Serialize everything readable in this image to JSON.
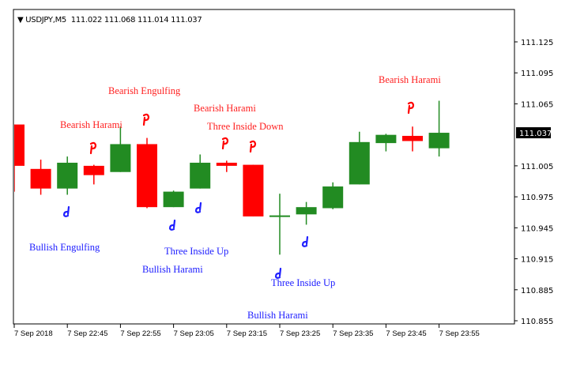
{
  "header": {
    "symbol": "USDJPY,M5",
    "ohlc": "111.022 111.068 111.014 111.037"
  },
  "chart_data": {
    "type": "candlestick",
    "title": "USDJPY,M5",
    "colors": {
      "bull": "#228B22",
      "bear": "#FF0000",
      "bearish_label": "#FF2020",
      "bullish_label": "#2020FF"
    },
    "ylim": [
      110.845,
      111.15
    ],
    "yticks": [
      "111.125",
      "111.095",
      "111.065",
      "111.005",
      "110.975",
      "110.945",
      "110.915",
      "110.885",
      "110.855"
    ],
    "current_price": "111.037",
    "xtick_labels": [
      "7 Sep 2018",
      "7 Sep 22:45",
      "7 Sep 22:55",
      "7 Sep 23:05",
      "7 Sep 23:15",
      "7 Sep 23:25",
      "7 Sep 23:35",
      "7 Sep 23:45",
      "7 Sep 23:55"
    ],
    "candles": [
      {
        "t": "22:35",
        "o": 111.045,
        "h": 111.045,
        "l": 110.98,
        "c": 111.005
      },
      {
        "t": "22:40",
        "o": 111.002,
        "h": 111.011,
        "l": 110.977,
        "c": 110.983
      },
      {
        "t": "22:45",
        "o": 110.983,
        "h": 111.014,
        "l": 110.977,
        "c": 111.008
      },
      {
        "t": "22:50",
        "o": 111.005,
        "h": 111.006,
        "l": 110.987,
        "c": 110.996
      },
      {
        "t": "22:55",
        "o": 110.999,
        "h": 111.043,
        "l": 110.999,
        "c": 111.026
      },
      {
        "t": "23:00",
        "o": 111.026,
        "h": 111.032,
        "l": 110.964,
        "c": 110.965
      },
      {
        "t": "23:05",
        "o": 110.965,
        "h": 110.981,
        "l": 110.965,
        "c": 110.98
      },
      {
        "t": "23:10",
        "o": 110.983,
        "h": 111.016,
        "l": 110.983,
        "c": 111.008
      },
      {
        "t": "23:15",
        "o": 111.008,
        "h": 111.01,
        "l": 110.999,
        "c": 111.005
      },
      {
        "t": "23:20",
        "o": 111.006,
        "h": 111.006,
        "l": 110.956,
        "c": 110.956
      },
      {
        "t": "23:25",
        "o": 110.957,
        "h": 110.978,
        "l": 110.919,
        "c": 110.957
      },
      {
        "t": "23:30",
        "o": 110.958,
        "h": 110.97,
        "l": 110.948,
        "c": 110.965
      },
      {
        "t": "23:35",
        "o": 110.964,
        "h": 110.989,
        "l": 110.963,
        "c": 110.985
      },
      {
        "t": "23:40",
        "o": 110.987,
        "h": 111.038,
        "l": 110.987,
        "c": 111.028
      },
      {
        "t": "23:45",
        "o": 111.027,
        "h": 111.036,
        "l": 111.019,
        "c": 111.035
      },
      {
        "t": "23:50",
        "o": 111.034,
        "h": 111.043,
        "l": 111.019,
        "c": 111.029
      },
      {
        "t": "23:55",
        "o": 111.022,
        "h": 111.068,
        "l": 111.014,
        "c": 111.037
      }
    ],
    "annotations": [
      {
        "text": "Bearish Engulfing",
        "type": "bearish"
      },
      {
        "text": "Bearish Harami",
        "type": "bearish"
      },
      {
        "text": "Bearish Harami",
        "type": "bearish"
      },
      {
        "text": "Three Inside Down",
        "type": "bearish"
      },
      {
        "text": "Bearish Harami",
        "type": "bearish"
      },
      {
        "text": "Bullish Engulfing",
        "type": "bullish"
      },
      {
        "text": "Three Inside Up",
        "type": "bullish"
      },
      {
        "text": "Bullish Harami",
        "type": "bullish"
      },
      {
        "text": "Three Inside Up",
        "type": "bullish"
      },
      {
        "text": "Bullish Harami",
        "type": "bullish"
      }
    ],
    "signal_markers": {
      "down_icon": "hand-down-icon",
      "up_icon": "hand-up-icon"
    }
  }
}
